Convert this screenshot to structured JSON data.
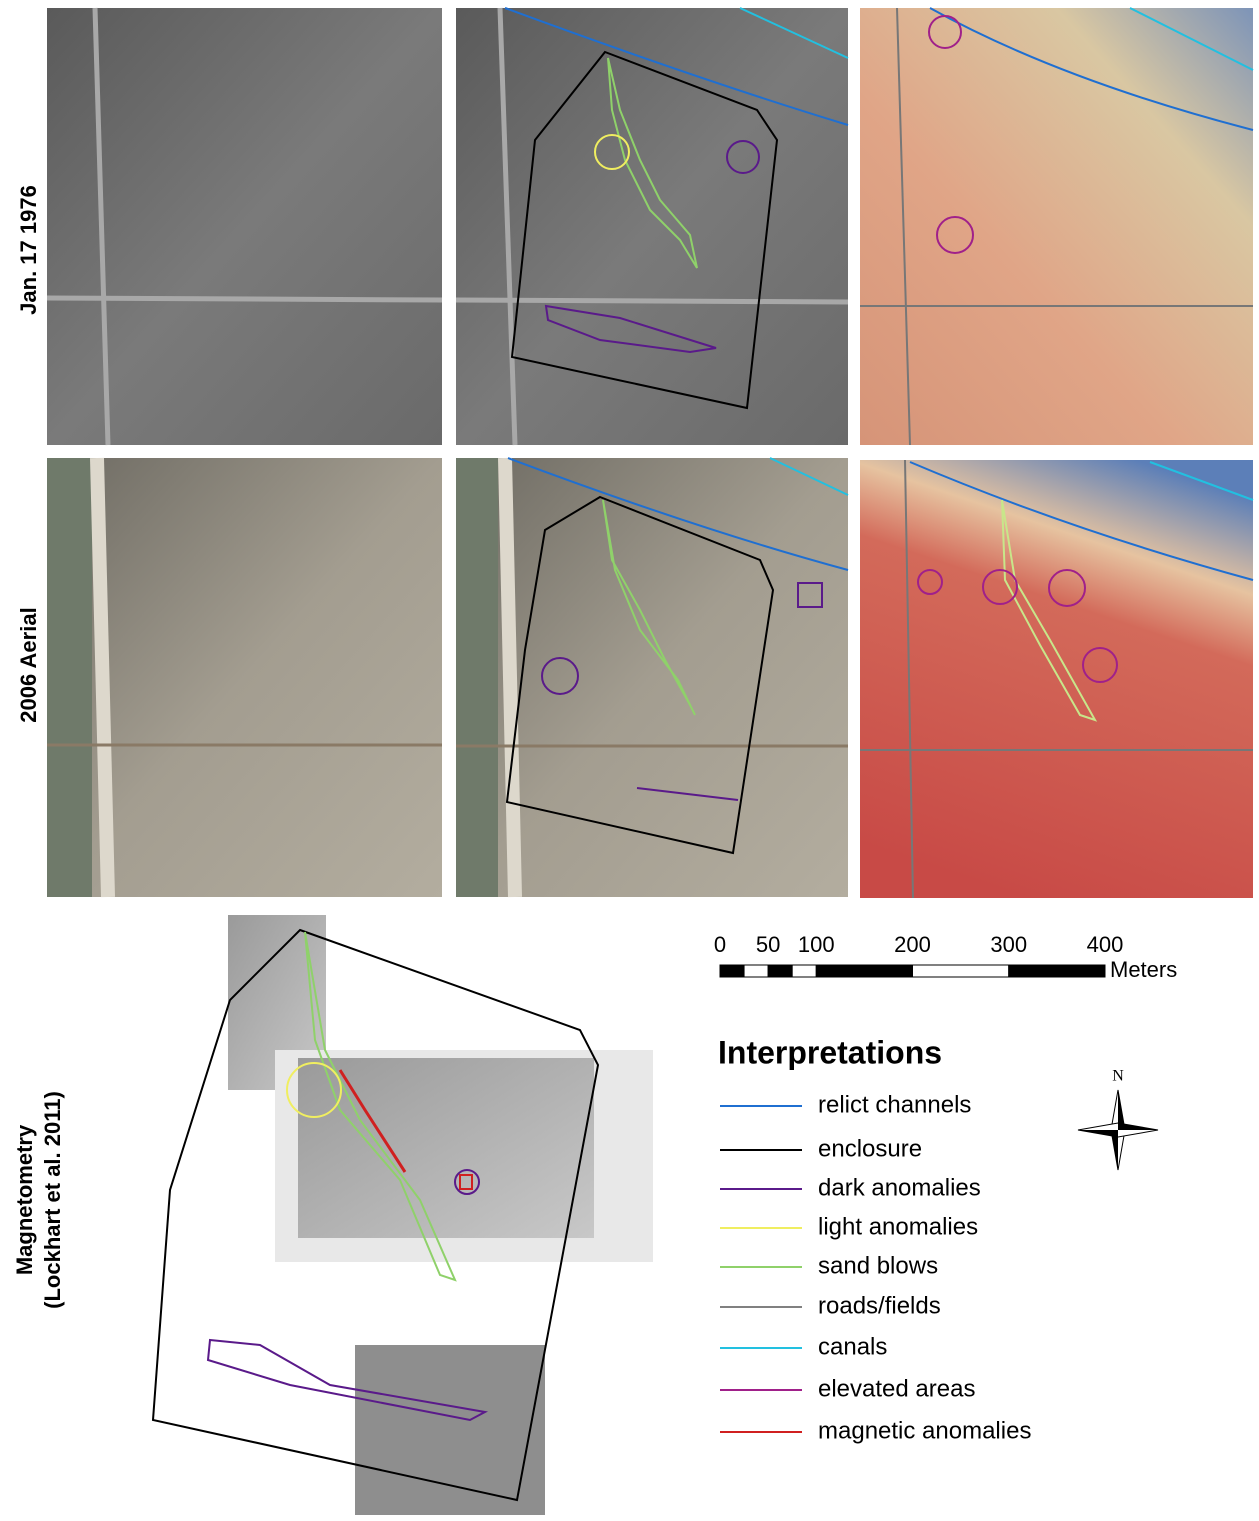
{
  "panels": {
    "row1_label": "Jan. 17 1976",
    "row2_label": "2006 Aerial",
    "row3_label": [
      "Magnetometry",
      "(Lockhart et al. 2011)"
    ]
  },
  "scale_bar": {
    "ticks": [
      0,
      50,
      100,
      200,
      300,
      400
    ],
    "unit": "Meters"
  },
  "legend": {
    "title": "Interpretations",
    "items": [
      {
        "label": "relict channels",
        "color": "#1f6fd1"
      },
      {
        "label": "enclosure",
        "color": "#000000"
      },
      {
        "label": "dark anomalies",
        "color": "#5a1a8a"
      },
      {
        "label": "light anomalies",
        "color": "#f0ee60"
      },
      {
        "label": "sand blows",
        "color": "#8fd16a"
      },
      {
        "label": "roads/fields",
        "color": "#808080"
      },
      {
        "label": "canals",
        "color": "#22c0e0"
      },
      {
        "label": "elevated areas",
        "color": "#a0208a"
      },
      {
        "label": "magnetic anomalies",
        "color": "#d02020"
      }
    ]
  },
  "north_arrow": {
    "label": "N"
  }
}
